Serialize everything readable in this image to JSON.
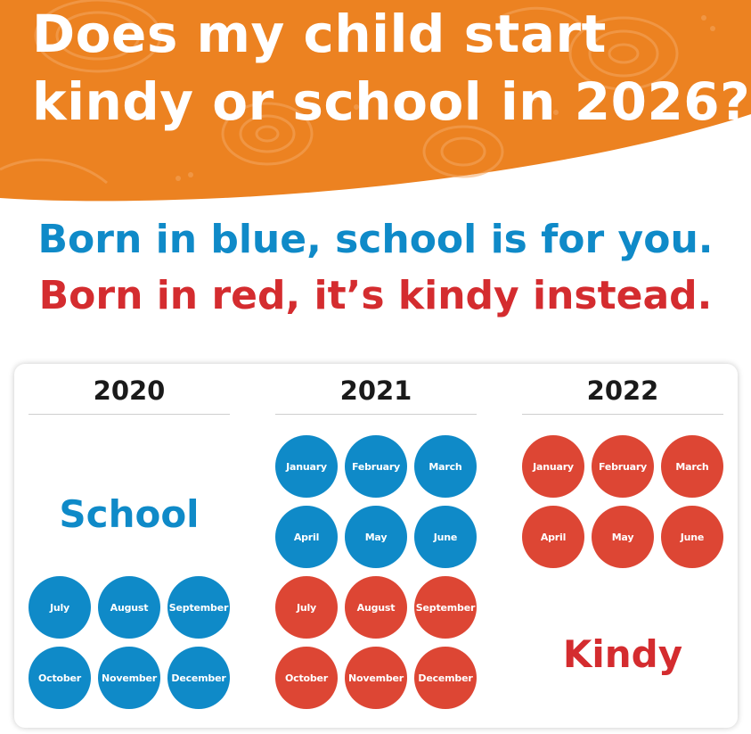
{
  "header": {
    "line1": "Does my child start",
    "line2": "kindy or school in 2026?"
  },
  "slogans": {
    "blue": "Born in blue, school is for you.",
    "red": "Born in red, it’s kindy instead."
  },
  "colors": {
    "orange": "#ec8221",
    "blue": "#0f8ac8",
    "red": "#d42c2f",
    "month_red": "#dd4634"
  },
  "calendar": {
    "y2020": {
      "year": "2020",
      "label": "School",
      "months": [
        "July",
        "August",
        "September",
        "October",
        "November",
        "December"
      ]
    },
    "y2021": {
      "year": "2021",
      "school_months": [
        "January",
        "February",
        "March",
        "April",
        "May",
        "June"
      ],
      "kindy_months": [
        "July",
        "August",
        "September",
        "October",
        "November",
        "December"
      ]
    },
    "y2022": {
      "year": "2022",
      "label": "Kindy",
      "months": [
        "January",
        "February",
        "March",
        "April",
        "May",
        "June"
      ]
    }
  }
}
